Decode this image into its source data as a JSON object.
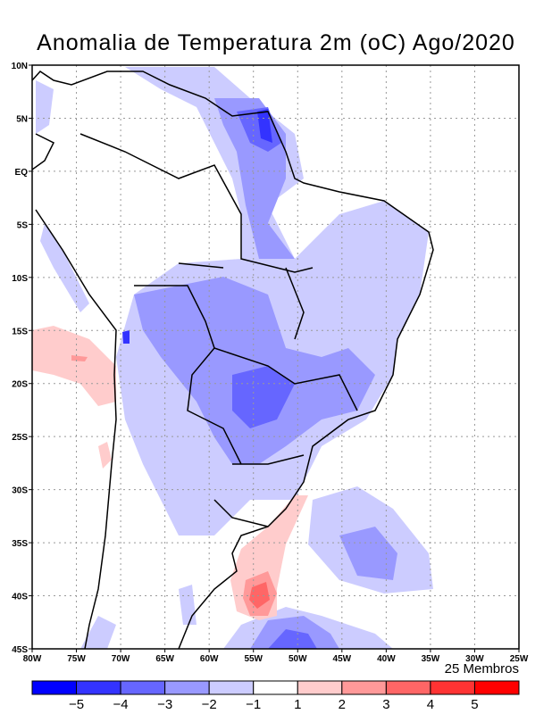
{
  "title": "Anomalia de Temperatura 2m (oC) Ago/2020",
  "members_label": "25 Membros",
  "lat_labels": [
    "10N",
    "5N",
    "EQ",
    "5S",
    "10S",
    "15S",
    "20S",
    "25S",
    "30S",
    "35S",
    "40S",
    "45S"
  ],
  "lon_labels": [
    "80W",
    "75W",
    "70W",
    "65W",
    "60W",
    "55W",
    "50W",
    "45W",
    "40W",
    "35W",
    "30W",
    "25W"
  ],
  "colorbar": {
    "colors": [
      "#0000ff",
      "#3333ff",
      "#6666ff",
      "#9999ff",
      "#ccccff",
      "#ffffff",
      "#ffcccc",
      "#ff9999",
      "#ff6666",
      "#ff3333",
      "#ff0000"
    ],
    "labels": [
      "−5",
      "−4",
      "−3",
      "−2",
      "−1",
      "1",
      "2",
      "3",
      "4",
      "5"
    ]
  }
}
